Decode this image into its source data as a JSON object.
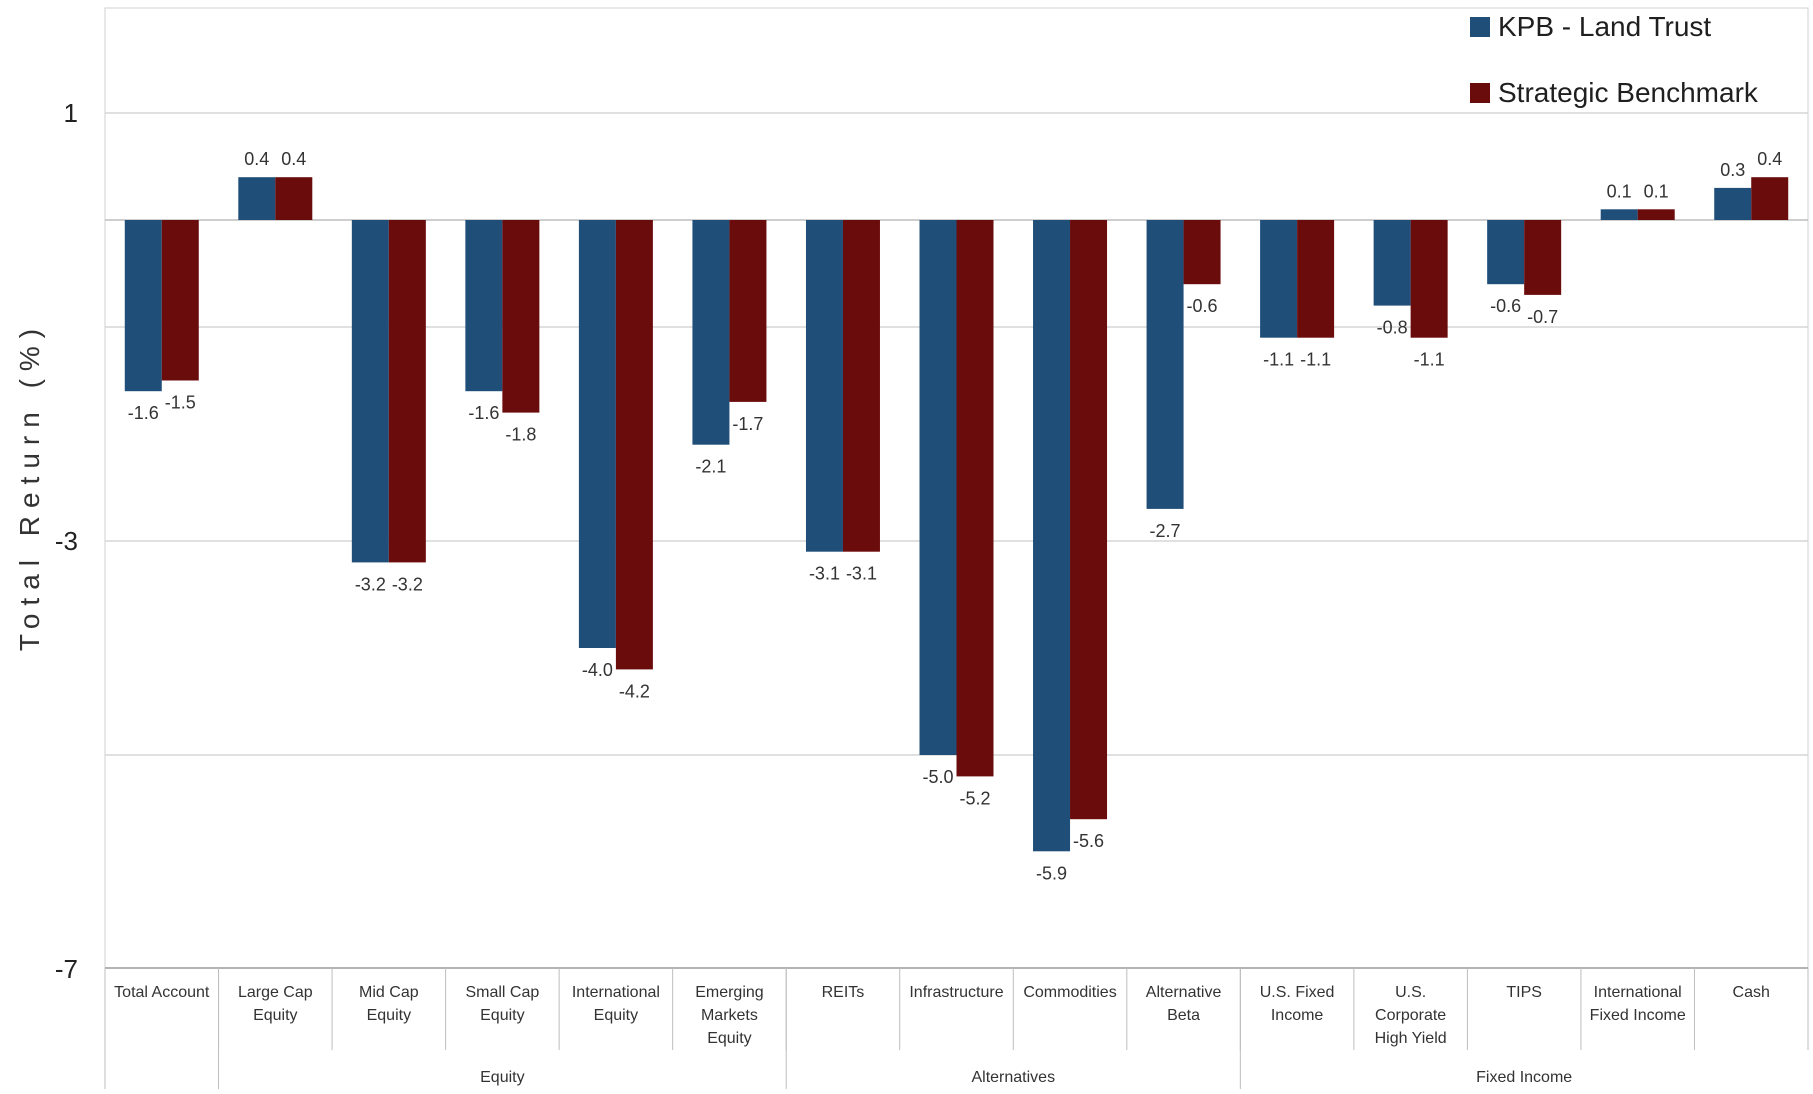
{
  "chart_data": {
    "type": "bar",
    "ylabel": "Total Return (%)",
    "ylim": [
      -7,
      2
    ],
    "yticks": [
      1,
      -3,
      -7
    ],
    "grid": true,
    "legend_position": "top-right",
    "categories": [
      "Total Account",
      "Large Cap Equity",
      "Mid Cap Equity",
      "Small Cap Equity",
      "International Equity",
      "Emerging Markets Equity",
      "REITs",
      "Infrastructure",
      "Commodities",
      "Alternative Beta",
      "U.S. Fixed Income",
      "U.S. Corporate High Yield",
      "TIPS",
      "International Fixed Income",
      "Cash"
    ],
    "category_lines": [
      [
        "Total Account"
      ],
      [
        "Large Cap",
        "Equity"
      ],
      [
        "Mid Cap",
        "Equity"
      ],
      [
        "Small Cap",
        "Equity"
      ],
      [
        "International",
        "Equity"
      ],
      [
        "Emerging",
        "Markets",
        "Equity"
      ],
      [
        "REITs"
      ],
      [
        "Infrastructure"
      ],
      [
        "Commodities"
      ],
      [
        "Alternative",
        "Beta"
      ],
      [
        "U.S. Fixed",
        "Income"
      ],
      [
        "U.S.",
        "Corporate",
        "High Yield"
      ],
      [
        "TIPS"
      ],
      [
        "International",
        "Fixed Income"
      ],
      [
        "Cash"
      ]
    ],
    "groups": [
      {
        "name": "Equity",
        "start": 1,
        "end": 5
      },
      {
        "name": "Alternatives",
        "start": 6,
        "end": 9
      },
      {
        "name": "Fixed Income",
        "start": 10,
        "end": 14
      }
    ],
    "series": [
      {
        "name": "KPB - Land Trust",
        "color": "#1f4e79",
        "values": [
          -1.6,
          0.4,
          -3.2,
          -1.6,
          -4.0,
          -2.1,
          -3.1,
          -5.0,
          -5.9,
          -2.7,
          -1.1,
          -0.8,
          -0.6,
          0.1,
          0.3
        ],
        "labels": [
          "-1.6",
          "0.4",
          "-3.2",
          "-1.6",
          "-4.0",
          "-2.1",
          "-3.1",
          "-5.0",
          "-5.9",
          "-2.7",
          "-1.1",
          "-0.8",
          "-0.6",
          "0.1",
          "0.3"
        ]
      },
      {
        "name": "Strategic Benchmark",
        "color": "#6b0c0c",
        "values": [
          -1.5,
          0.4,
          -3.2,
          -1.8,
          -4.2,
          -1.7,
          -3.1,
          -5.2,
          -5.6,
          -0.6,
          -1.1,
          -1.1,
          -0.7,
          0.1,
          0.4
        ],
        "labels": [
          "-1.5",
          "0.4",
          "-3.2",
          "-1.8",
          "-4.2",
          "-1.7",
          "-3.1",
          "-5.2",
          "-5.6",
          "-0.6",
          "-1.1",
          "-1.1",
          "-0.7",
          "0.1",
          "0.4"
        ]
      }
    ]
  }
}
